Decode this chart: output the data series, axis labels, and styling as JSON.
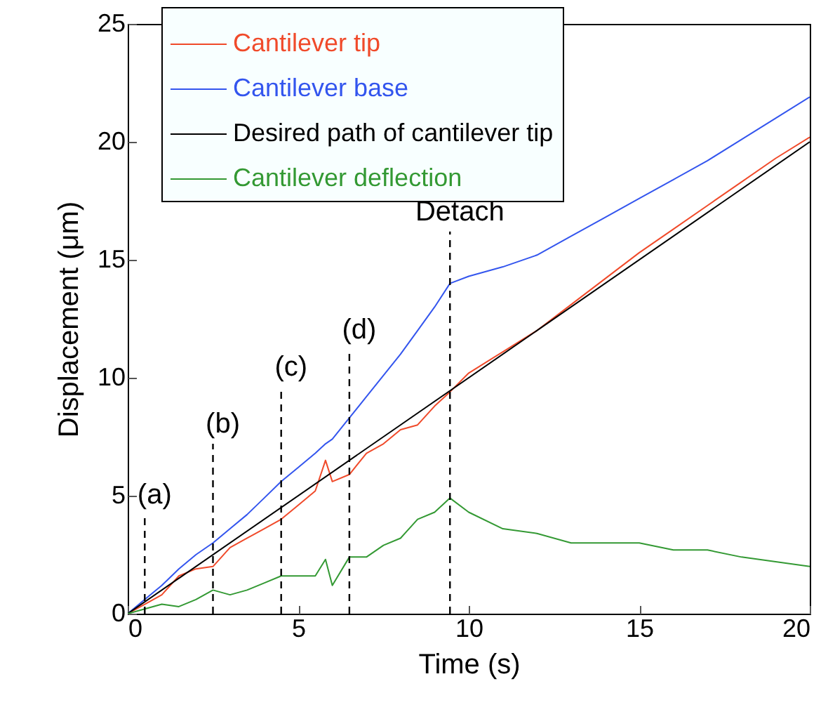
{
  "chart_data": {
    "type": "line",
    "xlabel": "Time (s)",
    "ylabel": "Displacement (μm)",
    "xlim": [
      0,
      20
    ],
    "xticks": [
      0,
      5,
      10,
      15,
      20
    ],
    "ylim": [
      0,
      25
    ],
    "yticks": [
      0,
      5,
      10,
      15,
      20,
      25
    ],
    "grid": false,
    "legend": "top left",
    "line_style": "solid",
    "marker": "none",
    "x": [
      0,
      0.5,
      1,
      1.5,
      2,
      2.5,
      3,
      3.5,
      4,
      4.5,
      5,
      5.5,
      5.8,
      6,
      6.5,
      7,
      7.5,
      8,
      8.5,
      9,
      9.45,
      10,
      11,
      12,
      13,
      14,
      15,
      16,
      17,
      18,
      19,
      20
    ],
    "series": [
      {
        "name": "Cantilever tip",
        "color": "#f04a2a",
        "values": [
          0,
          0.4,
          0.8,
          1.6,
          1.9,
          2.0,
          2.8,
          3.2,
          3.6,
          4.0,
          4.6,
          5.2,
          6.5,
          5.6,
          5.9,
          6.8,
          7.2,
          7.8,
          8.0,
          8.8,
          9.4,
          10.2,
          11.1,
          12.0,
          13.1,
          14.2,
          15.3,
          16.3,
          17.3,
          18.3,
          19.3,
          20.2
        ]
      },
      {
        "name": "Cantilever base",
        "color": "#3355ee",
        "values": [
          0,
          0.6,
          1.2,
          1.9,
          2.5,
          3.0,
          3.6,
          4.2,
          4.9,
          5.6,
          6.2,
          6.8,
          7.2,
          7.4,
          8.3,
          9.2,
          10.1,
          11.0,
          12.0,
          13.0,
          14.0,
          14.3,
          14.7,
          15.2,
          16.0,
          16.8,
          17.6,
          18.4,
          19.2,
          20.1,
          21.0,
          21.9
        ]
      },
      {
        "name": "Desired path of cantilever tip",
        "color": "#000000",
        "x": [
          0,
          20
        ],
        "values": [
          0,
          20
        ]
      },
      {
        "name": "Cantilever deflection",
        "color": "#339933",
        "values": [
          0,
          0.2,
          0.4,
          0.3,
          0.6,
          1.0,
          0.8,
          1.0,
          1.3,
          1.6,
          1.6,
          1.6,
          2.3,
          1.2,
          2.4,
          2.4,
          2.9,
          3.2,
          4.0,
          4.3,
          4.9,
          4.3,
          3.6,
          3.4,
          3.0,
          3.0,
          3.0,
          2.7,
          2.7,
          2.4,
          2.2,
          2.0
        ]
      }
    ],
    "ref_lines": [
      {
        "axis": "x",
        "value": 0.5,
        "line_style": "dashed"
      },
      {
        "axis": "x",
        "value": 2.5,
        "line_style": "dashed"
      },
      {
        "axis": "x",
        "value": 4.5,
        "line_style": "dashed"
      },
      {
        "axis": "x",
        "value": 6.5,
        "line_style": "dashed"
      },
      {
        "axis": "x",
        "value": 9.45,
        "line_style": "dashed"
      }
    ],
    "annotations": [
      {
        "text": "(a)",
        "x": 0.5,
        "y": 4.2
      },
      {
        "text": "(b)",
        "x": 2.5,
        "y": 7.2
      },
      {
        "text": "(c)",
        "x": 4.5,
        "y": 9.6
      },
      {
        "text": "(d)",
        "x": 6.5,
        "y": 11.2
      },
      {
        "text": "Detach",
        "x": 9.45,
        "y": 16.2
      }
    ]
  }
}
